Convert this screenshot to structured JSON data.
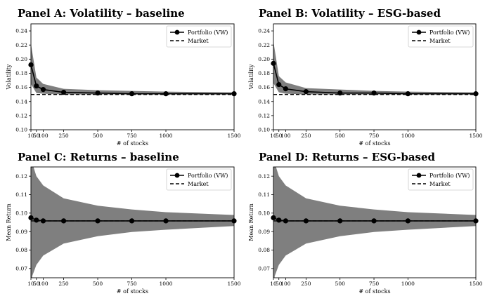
{
  "chart_data": [
    {
      "type": "line",
      "title": "Panel A: Volatility – baseline",
      "xlabel": "# of stocks",
      "ylabel": "Volatility",
      "xlim": [
        10,
        1500
      ],
      "ylim": [
        0.1,
        0.25
      ],
      "xticks": [
        10,
        50,
        100,
        250,
        500,
        750,
        1000,
        1500
      ],
      "yticks": [
        0.1,
        0.12,
        0.14,
        0.16,
        0.18,
        0.2,
        0.22,
        0.24
      ],
      "yticklabels": [
        "0.10",
        "0.12",
        "0.14",
        "0.16",
        "0.18",
        "0.20",
        "0.22",
        "0.24"
      ],
      "legend": "top-right",
      "x": [
        10,
        50,
        100,
        250,
        500,
        750,
        1000,
        1500
      ],
      "series": [
        {
          "name": "Portfolio (VW)",
          "style": "solid-marker",
          "values": [
            0.192,
            0.162,
            0.157,
            0.153,
            0.152,
            0.151,
            0.151,
            0.151
          ]
        },
        {
          "name": "Market",
          "style": "dashed",
          "values": [
            0.15,
            0.15,
            0.15,
            0.15,
            0.15,
            0.15,
            0.15,
            0.15
          ]
        }
      ],
      "band": {
        "x": [
          10,
          50,
          100,
          250,
          500,
          750,
          1000,
          1500
        ],
        "lower": [
          0.165,
          0.152,
          0.151,
          0.15,
          0.15,
          0.15,
          0.15,
          0.15
        ],
        "upper": [
          0.222,
          0.174,
          0.165,
          0.158,
          0.156,
          0.155,
          0.154,
          0.153
        ]
      }
    },
    {
      "type": "line",
      "title": "Panel B: Volatility – ESG-based",
      "xlabel": "# of stocks",
      "ylabel": "Volatility",
      "xlim": [
        10,
        1500
      ],
      "ylim": [
        0.1,
        0.25
      ],
      "xticks": [
        10,
        50,
        100,
        250,
        500,
        750,
        1000,
        1500
      ],
      "yticks": [
        0.1,
        0.12,
        0.14,
        0.16,
        0.18,
        0.2,
        0.22,
        0.24
      ],
      "yticklabels": [
        "0.10",
        "0.12",
        "0.14",
        "0.16",
        "0.18",
        "0.20",
        "0.22",
        "0.24"
      ],
      "legend": "top-right",
      "x": [
        10,
        50,
        100,
        250,
        500,
        750,
        1000,
        1500
      ],
      "series": [
        {
          "name": "Portfolio (VW)",
          "style": "solid-marker",
          "values": [
            0.194,
            0.164,
            0.158,
            0.154,
            0.152,
            0.152,
            0.151,
            0.151
          ]
        },
        {
          "name": "Market",
          "style": "dashed",
          "values": [
            0.15,
            0.15,
            0.15,
            0.15,
            0.15,
            0.15,
            0.15,
            0.15
          ]
        }
      ],
      "band": {
        "x": [
          10,
          50,
          100,
          250,
          500,
          750,
          1000,
          1500
        ],
        "lower": [
          0.166,
          0.153,
          0.151,
          0.15,
          0.15,
          0.15,
          0.15,
          0.15
        ],
        "upper": [
          0.225,
          0.176,
          0.167,
          0.159,
          0.157,
          0.155,
          0.154,
          0.153
        ]
      }
    },
    {
      "type": "line",
      "title": "Panel C: Returns – baseline",
      "xlabel": "# of stocks",
      "ylabel": "Mean Return",
      "xlim": [
        10,
        1500
      ],
      "ylim": [
        0.065,
        0.125
      ],
      "xticks": [
        10,
        50,
        100,
        250,
        500,
        750,
        1000,
        1500
      ],
      "yticks": [
        0.07,
        0.08,
        0.09,
        0.1,
        0.11,
        0.12
      ],
      "yticklabels": [
        "0.07",
        "0.08",
        "0.09",
        "0.10",
        "0.11",
        "0.12"
      ],
      "legend": "top-right",
      "x": [
        10,
        50,
        100,
        250,
        500,
        750,
        1000,
        1500
      ],
      "series": [
        {
          "name": "Portfolio (VW)",
          "style": "solid-marker",
          "values": [
            0.0975,
            0.0962,
            0.0958,
            0.0958,
            0.0958,
            0.0958,
            0.0958,
            0.0958
          ]
        },
        {
          "name": "Market",
          "style": "dashed",
          "values": [
            0.0958,
            0.0958,
            0.0958,
            0.0958,
            0.0958,
            0.0958,
            0.0958,
            0.0958
          ]
        }
      ],
      "band": {
        "x": [
          10,
          20,
          50,
          100,
          250,
          500,
          750,
          1000,
          1500
        ],
        "lower": [
          0.06,
          0.066,
          0.072,
          0.077,
          0.0835,
          0.0875,
          0.0898,
          0.091,
          0.093
        ],
        "upper": [
          0.135,
          0.127,
          0.12,
          0.115,
          0.108,
          0.104,
          0.102,
          0.1005,
          0.099
        ]
      }
    },
    {
      "type": "line",
      "title": "Panel D: Returns – ESG-based",
      "xlabel": "# of stocks",
      "ylabel": "Mean Return",
      "xlim": [
        10,
        1500
      ],
      "ylim": [
        0.065,
        0.125
      ],
      "xticks": [
        10,
        50,
        100,
        250,
        500,
        750,
        1000,
        1500
      ],
      "yticks": [
        0.07,
        0.08,
        0.09,
        0.1,
        0.11,
        0.12
      ],
      "yticklabels": [
        "0.07",
        "0.08",
        "0.09",
        "0.10",
        "0.11",
        "0.12"
      ],
      "legend": "top-right",
      "x": [
        10,
        50,
        100,
        250,
        500,
        750,
        1000,
        1500
      ],
      "series": [
        {
          "name": "Portfolio (VW)",
          "style": "solid-marker",
          "values": [
            0.0975,
            0.0962,
            0.0958,
            0.0958,
            0.0958,
            0.0958,
            0.0958,
            0.0958
          ]
        },
        {
          "name": "Market",
          "style": "dashed",
          "values": [
            0.0958,
            0.0958,
            0.0958,
            0.0958,
            0.0958,
            0.0958,
            0.0958,
            0.0958
          ]
        }
      ],
      "band": {
        "x": [
          10,
          20,
          50,
          100,
          250,
          500,
          750,
          1000,
          1500
        ],
        "lower": [
          0.06,
          0.066,
          0.072,
          0.077,
          0.0835,
          0.0875,
          0.0898,
          0.091,
          0.093
        ],
        "upper": [
          0.135,
          0.127,
          0.12,
          0.115,
          0.108,
          0.104,
          0.102,
          0.1005,
          0.099
        ]
      }
    }
  ]
}
